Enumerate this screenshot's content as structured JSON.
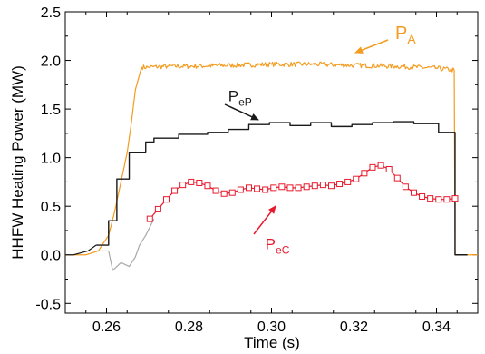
{
  "chart_data": {
    "type": "line",
    "title": "",
    "xlabel": "Time (s)",
    "ylabel": "HHFW Heating Power (MW)",
    "xlim": [
      0.25,
      0.35
    ],
    "ylim": [
      -0.6,
      2.5
    ],
    "xticks": [
      0.26,
      0.28,
      0.3,
      0.32,
      0.34
    ],
    "xtick_labels": [
      "0.26",
      "0.28",
      "0.30",
      "0.32",
      "0.34"
    ],
    "yticks": [
      -0.5,
      0.0,
      0.5,
      1.0,
      1.5,
      2.0,
      2.5
    ],
    "ytick_labels": [
      "-0.5",
      "0.0",
      "0.5",
      "1.0",
      "1.5",
      "2.0",
      "2.5"
    ],
    "grid": false,
    "series": [
      {
        "name": "P_A",
        "color": "#f39c1f",
        "style": "noisy-line",
        "x": [
          0.25,
          0.255,
          0.258,
          0.2605,
          0.262,
          0.2635,
          0.265,
          0.266,
          0.267,
          0.2685,
          0.27,
          0.275,
          0.28,
          0.29,
          0.3,
          0.31,
          0.32,
          0.33,
          0.34,
          0.3443,
          0.3445,
          0.345,
          0.35
        ],
        "y": [
          0.0,
          0.0,
          0.04,
          0.2,
          0.45,
          0.75,
          1.05,
          1.35,
          1.7,
          1.93,
          1.93,
          1.94,
          1.94,
          1.95,
          1.96,
          1.96,
          1.95,
          1.94,
          1.92,
          1.9,
          0.0,
          0.0,
          0.0
        ]
      },
      {
        "name": "P_eP",
        "color": "#1a1a1a",
        "style": "step-line",
        "x": [
          0.2575,
          0.2605,
          0.2605,
          0.2625,
          0.2625,
          0.2655,
          0.2655,
          0.2695,
          0.2695,
          0.2715,
          0.2715,
          0.2775,
          0.2775,
          0.2845,
          0.2845,
          0.2895,
          0.2895,
          0.2945,
          0.2945,
          0.2995,
          0.2995,
          0.3045,
          0.3045,
          0.3095,
          0.3095,
          0.3145,
          0.3145,
          0.3195,
          0.3195,
          0.3245,
          0.3245,
          0.3295,
          0.3295,
          0.3345,
          0.3345,
          0.3405,
          0.3405,
          0.3445,
          0.3445,
          0.3475
        ],
        "y": [
          0.1,
          0.1,
          0.35,
          0.35,
          0.78,
          0.78,
          1.05,
          1.05,
          1.16,
          1.16,
          1.2,
          1.2,
          1.24,
          1.24,
          1.26,
          1.26,
          1.29,
          1.29,
          1.34,
          1.34,
          1.36,
          1.36,
          1.33,
          1.33,
          1.36,
          1.36,
          1.32,
          1.32,
          1.34,
          1.34,
          1.36,
          1.36,
          1.37,
          1.37,
          1.35,
          1.35,
          1.26,
          1.26,
          0.0,
          0.0
        ]
      },
      {
        "name": "P_eP (lead-in)",
        "color": "#1a1a1a",
        "style": "line",
        "x": [
          0.25,
          0.252,
          0.2555,
          0.2575
        ],
        "y": [
          0.0,
          0.0,
          0.04,
          0.1
        ]
      },
      {
        "name": "P_eC (lead-in)",
        "color": "#a9a9a9",
        "style": "line",
        "x": [
          0.2575,
          0.2605,
          0.2615,
          0.2635,
          0.2655,
          0.267,
          0.268,
          0.2695,
          0.2715
        ],
        "y": [
          0.04,
          0.04,
          -0.16,
          -0.08,
          -0.12,
          -0.02,
          0.1,
          0.2,
          0.37
        ]
      },
      {
        "name": "P_eC",
        "color": "#e8192c",
        "style": "line-square-markers",
        "x": [
          0.2705,
          0.2725,
          0.2745,
          0.2765,
          0.2785,
          0.2805,
          0.2825,
          0.2845,
          0.2865,
          0.2885,
          0.2905,
          0.2925,
          0.2945,
          0.2965,
          0.2985,
          0.3005,
          0.3025,
          0.3045,
          0.3065,
          0.3085,
          0.3105,
          0.3125,
          0.3145,
          0.3165,
          0.3185,
          0.3205,
          0.3225,
          0.3245,
          0.3265,
          0.3285,
          0.3305,
          0.3325,
          0.3345,
          0.3365,
          0.3385,
          0.3405,
          0.3425,
          0.3445
        ],
        "y": [
          0.37,
          0.47,
          0.57,
          0.66,
          0.72,
          0.75,
          0.74,
          0.71,
          0.66,
          0.63,
          0.64,
          0.67,
          0.69,
          0.68,
          0.67,
          0.69,
          0.7,
          0.69,
          0.69,
          0.7,
          0.71,
          0.72,
          0.71,
          0.73,
          0.75,
          0.78,
          0.84,
          0.9,
          0.92,
          0.88,
          0.79,
          0.7,
          0.64,
          0.6,
          0.58,
          0.57,
          0.57,
          0.58
        ]
      }
    ],
    "annotations": [
      {
        "label": "P",
        "subscript": "A",
        "color": "#f39c1f",
        "x": 0.33,
        "y": 2.22
      },
      {
        "label": "P",
        "subscript": "eP",
        "color": "#1a1a1a",
        "x": 0.2895,
        "y": 1.58
      },
      {
        "label": "P",
        "subscript": "eC",
        "color": "#e8192c",
        "x": 0.2985,
        "y": 0.06
      }
    ]
  }
}
